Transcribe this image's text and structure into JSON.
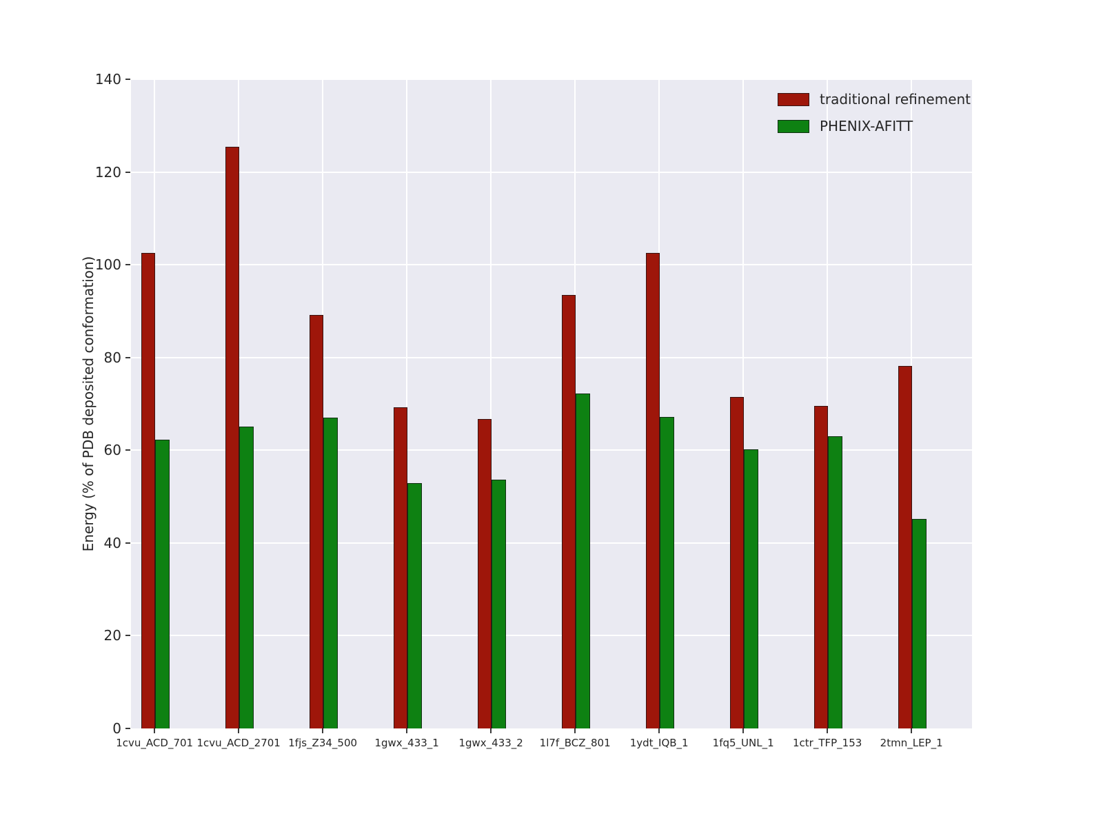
{
  "chart_data": {
    "type": "bar",
    "categories": [
      "1cvu_ACD_701",
      "1cvu_ACD_2701",
      "1fjs_Z34_500",
      "1gwx_433_1",
      "1gwx_433_2",
      "1l7f_BCZ_801",
      "1ydt_IQB_1",
      "1fq5_UNL_1",
      "1ctr_TFP_153",
      "2tmn_LEP_1"
    ],
    "series": [
      {
        "name": "traditional refinement",
        "color": "#9e160a",
        "values": [
          102.5,
          125.5,
          89.2,
          69.3,
          66.8,
          93.5,
          102.5,
          71.5,
          69.5,
          78.2
        ]
      },
      {
        "name": "PHENIX-AFITT",
        "color": "#0e8112",
        "values": [
          62.2,
          65.1,
          67.1,
          52.9,
          53.6,
          72.3,
          67.2,
          60.2,
          63.0,
          45.2
        ]
      }
    ],
    "title": "",
    "xlabel": "",
    "ylabel": "Energy (% of PDB deposited conformation)",
    "ylim": [
      0,
      140
    ],
    "yticks": [
      0,
      20,
      40,
      60,
      80,
      100,
      120,
      140
    ],
    "grid": true,
    "legend_position": "upper right",
    "plot_bg_color": "#eaeaf2",
    "grid_color": "#ffffff"
  }
}
